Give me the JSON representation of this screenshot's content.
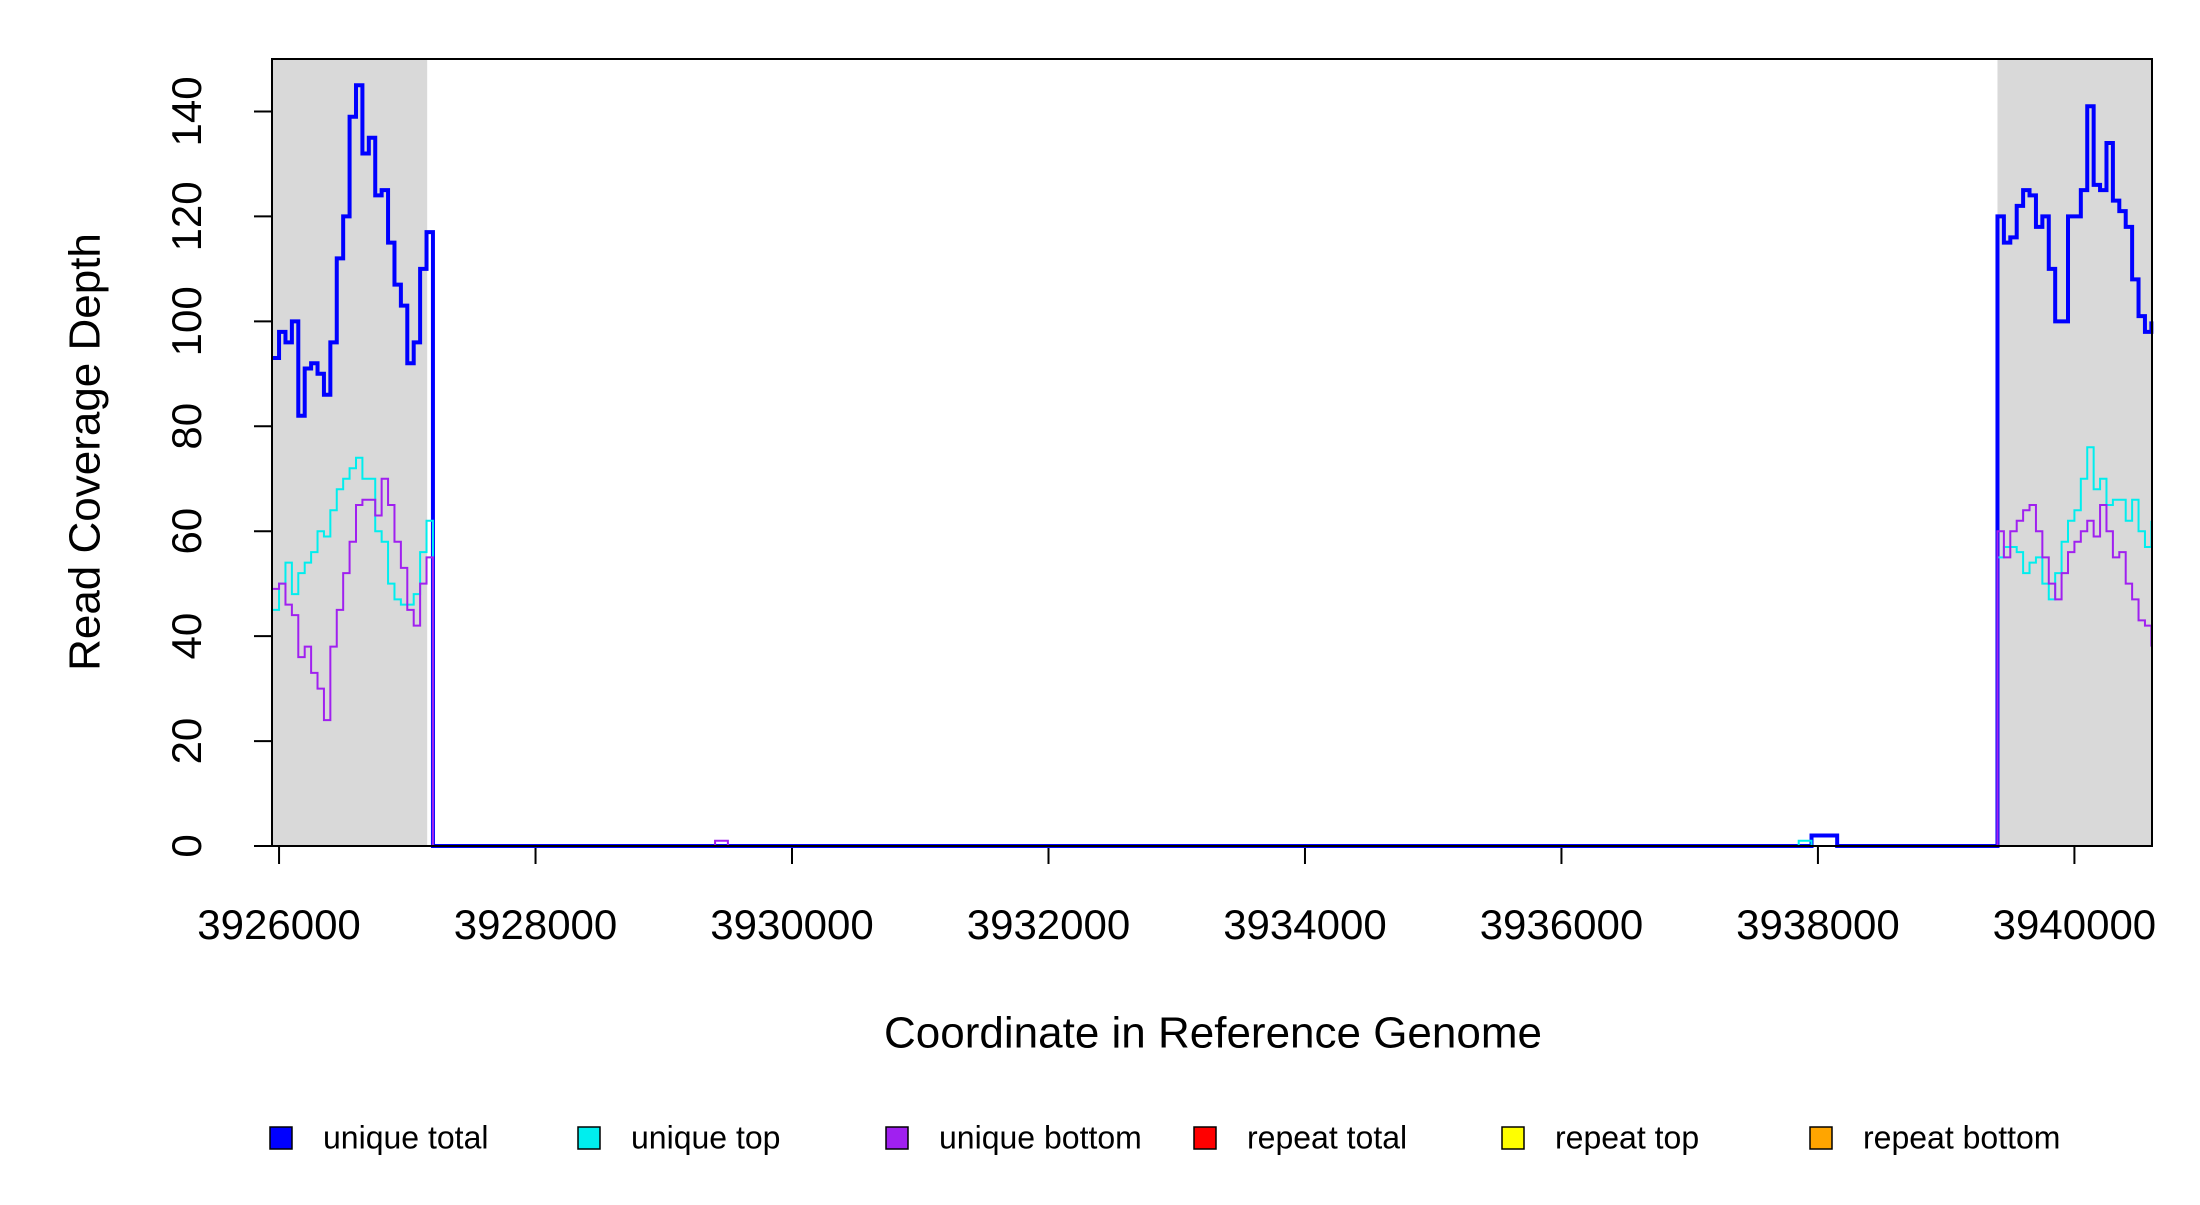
{
  "chart_data": {
    "type": "line",
    "step": true,
    "x_label": "Coordinate in Reference Genome",
    "y_label": "Read Coverage Depth",
    "xlim": [
      3925945,
      3940605
    ],
    "ylim": [
      0,
      150
    ],
    "xticks": [
      3926000,
      3928000,
      3930000,
      3932000,
      3934000,
      3936000,
      3938000,
      3940000
    ],
    "yticks": [
      0,
      20,
      40,
      60,
      80,
      100,
      120,
      140
    ],
    "shaded_regions": [
      [
        3925945,
        3927155
      ],
      [
        3939400,
        3940605
      ]
    ],
    "shade_color": "#d9d9d9",
    "legend": "bottom",
    "x": [
      3925950,
      3926000,
      3926050,
      3926100,
      3926150,
      3926200,
      3926250,
      3926300,
      3926350,
      3926400,
      3926450,
      3926500,
      3926550,
      3926600,
      3926650,
      3926700,
      3926750,
      3926800,
      3926850,
      3926900,
      3926950,
      3927000,
      3927050,
      3927100,
      3927150,
      3927200,
      3929350,
      3929400,
      3929500,
      3937850,
      3937950,
      3938100,
      3938150,
      3939350,
      3939400,
      3939450,
      3939500,
      3939550,
      3939600,
      3939650,
      3939700,
      3939750,
      3939800,
      3939850,
      3939900,
      3939950,
      3940000,
      3940050,
      3940100,
      3940150,
      3940200,
      3940250,
      3940300,
      3940350,
      3940400,
      3940450,
      3940500,
      3940550,
      3940600
    ],
    "series": [
      {
        "name": "unique total",
        "color": "#0000ff",
        "width": 4,
        "values": [
          93,
          98,
          96,
          100,
          82,
          91,
          92,
          90,
          86,
          96,
          112,
          120,
          139,
          145,
          132,
          135,
          124,
          125,
          115,
          107,
          103,
          92,
          96,
          110,
          117,
          0,
          0,
          0,
          0,
          0,
          2,
          2,
          0,
          0,
          120,
          115,
          116,
          122,
          125,
          124,
          118,
          120,
          110,
          100,
          100,
          120,
          120,
          125,
          141,
          126,
          125,
          134,
          123,
          121,
          118,
          108,
          101,
          98,
          100
        ]
      },
      {
        "name": "unique top",
        "color": "#00eeee",
        "width": 2,
        "values": [
          45,
          50,
          54,
          48,
          52,
          54,
          56,
          60,
          59,
          64,
          68,
          70,
          72,
          74,
          70,
          70,
          60,
          58,
          50,
          47,
          46,
          46,
          48,
          56,
          62,
          0,
          0,
          0,
          0,
          1,
          0,
          0,
          0,
          0,
          55,
          57,
          57,
          56,
          52,
          54,
          55,
          50,
          47,
          52,
          58,
          62,
          64,
          70,
          76,
          68,
          70,
          65,
          66,
          66,
          62,
          66,
          60,
          57,
          62
        ]
      },
      {
        "name": "unique bottom",
        "color": "#a020f0",
        "width": 2,
        "values": [
          49,
          50,
          46,
          44,
          36,
          38,
          33,
          30,
          24,
          38,
          45,
          52,
          58,
          65,
          66,
          66,
          63,
          70,
          65,
          58,
          53,
          45,
          42,
          50,
          55,
          0,
          0,
          1,
          0,
          0,
          0,
          0,
          0,
          0,
          60,
          55,
          60,
          62,
          64,
          65,
          60,
          55,
          50,
          47,
          52,
          56,
          58,
          60,
          62,
          59,
          65,
          60,
          55,
          56,
          50,
          47,
          43,
          42,
          38
        ]
      },
      {
        "name": "repeat total",
        "color": "#ff0000",
        "width": 2,
        "values": [
          0,
          0,
          0,
          0,
          0,
          0,
          0,
          0,
          0,
          0,
          0,
          0,
          0,
          0,
          0,
          0,
          0,
          0,
          0,
          0,
          0,
          0,
          0,
          0,
          0,
          0,
          0,
          0,
          0,
          0,
          0,
          0,
          0,
          0,
          0,
          0,
          0,
          0,
          0,
          0,
          0,
          0,
          0,
          0,
          0,
          0,
          0,
          0,
          0,
          0,
          0,
          0,
          0,
          0,
          0,
          0,
          0,
          0,
          0
        ]
      },
      {
        "name": "repeat top",
        "color": "#ffff00",
        "width": 2,
        "values": [
          0,
          0,
          0,
          0,
          0,
          0,
          0,
          0,
          0,
          0,
          0,
          0,
          0,
          0,
          0,
          0,
          0,
          0,
          0,
          0,
          0,
          0,
          0,
          0,
          0,
          0,
          0,
          0,
          0,
          0,
          0,
          0,
          0,
          0,
          0,
          0,
          0,
          0,
          0,
          0,
          0,
          0,
          0,
          0,
          0,
          0,
          0,
          0,
          0,
          0,
          0,
          0,
          0,
          0,
          0,
          0,
          0,
          0,
          0
        ]
      },
      {
        "name": "repeat bottom",
        "color": "#ffa500",
        "width": 2,
        "values": [
          0,
          0,
          0,
          0,
          0,
          0,
          0,
          0,
          0,
          0,
          0,
          0,
          0,
          0,
          0,
          0,
          0,
          0,
          0,
          0,
          0,
          0,
          0,
          0,
          0,
          0,
          0,
          0,
          0,
          0,
          0,
          0,
          0,
          0,
          0,
          0,
          0,
          0,
          0,
          0,
          0,
          0,
          0,
          0,
          0,
          0,
          0,
          0,
          0,
          0,
          0,
          0,
          0,
          0,
          0,
          0,
          0,
          0,
          0
        ]
      }
    ]
  }
}
